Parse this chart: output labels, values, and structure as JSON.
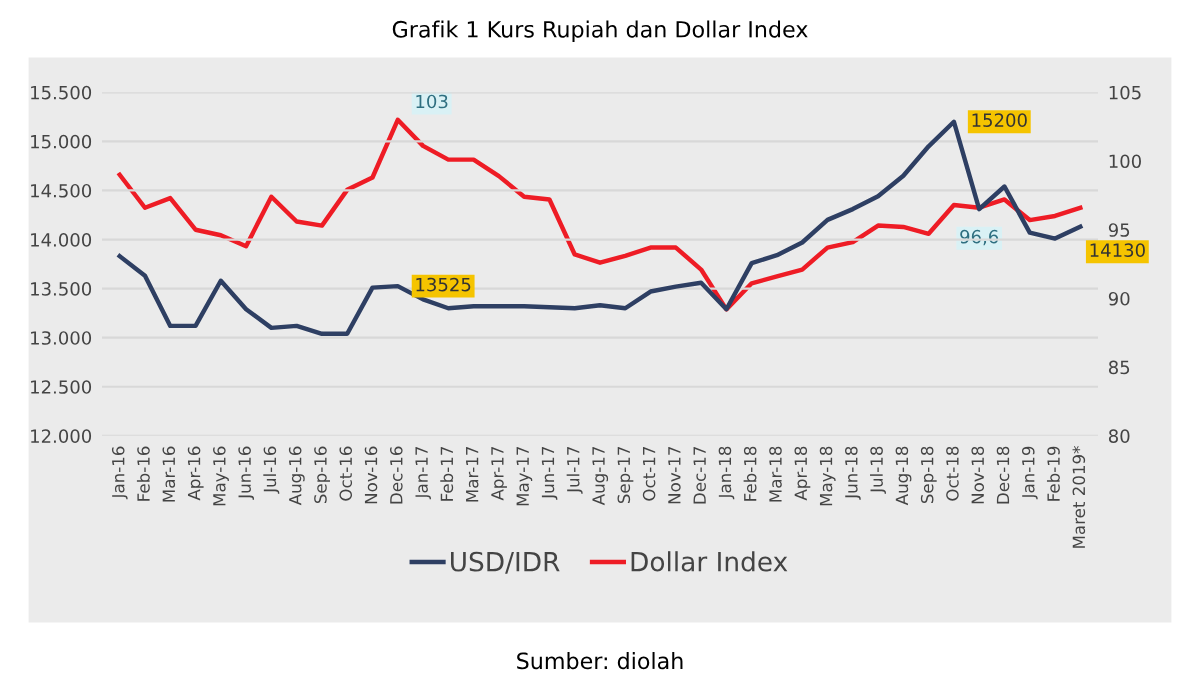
{
  "chart_data": {
    "type": "line",
    "title": "Grafik 1 Kurs Rupiah dan Dollar Index",
    "categories": [
      "Jan-16",
      "Feb-16",
      "Mar-16",
      "Apr-16",
      "May-16",
      "Jun-16",
      "Jul-16",
      "Aug-16",
      "Sep-16",
      "Oct-16",
      "Nov-16",
      "Dec-16",
      "Jan-17",
      "Feb-17",
      "Mar-17",
      "Apr-17",
      "May-17",
      "Jun-17",
      "Jul-17",
      "Aug-17",
      "Sep-17",
      "Oct-17",
      "Nov-17",
      "Dec-17",
      "Jan-18",
      "Feb-18",
      "Mar-18",
      "Apr-18",
      "May-18",
      "Jun-18",
      "Jul-18",
      "Aug-18",
      "Sep-18",
      "Oct-18",
      "Nov-18",
      "Dec-18",
      "Jan-19",
      "Feb-19",
      "Maret 2019*"
    ],
    "series": [
      {
        "name": "USD/IDR",
        "color": "#2e3f63",
        "values": [
          13830,
          13630,
          13120,
          13120,
          13580,
          13290,
          13100,
          13120,
          13040,
          13040,
          13510,
          13525,
          13390,
          13300,
          13320,
          13320,
          13320,
          13310,
          13300,
          13330,
          13300,
          13470,
          13520,
          13560,
          13290,
          13760,
          13840,
          13970,
          14200,
          14310,
          14440,
          14650,
          14950,
          15200,
          14310,
          14540,
          14070,
          14010,
          14130
        ],
        "value_labels": [
          null,
          null,
          null,
          null,
          null,
          null,
          null,
          null,
          null,
          null,
          null,
          "13525",
          null,
          null,
          null,
          null,
          null,
          null,
          null,
          null,
          null,
          null,
          null,
          null,
          null,
          null,
          null,
          null,
          null,
          null,
          null,
          null,
          null,
          "15200",
          null,
          null,
          null,
          null,
          "14130"
        ]
      },
      {
        "name": "Dollar Index",
        "color": "#ee1c25",
        "axis": "y2",
        "values": [
          99.0,
          96.6,
          97.3,
          95.0,
          94.6,
          93.8,
          97.4,
          95.6,
          95.3,
          97.9,
          98.8,
          103,
          101.1,
          100.1,
          100.1,
          98.9,
          97.4,
          97.2,
          93.2,
          92.6,
          93.1,
          93.7,
          93.7,
          92.1,
          89.2,
          91.1,
          91.6,
          92.1,
          93.7,
          94.1,
          95.3,
          95.2,
          94.7,
          96.8,
          96.6,
          97.2,
          95.7,
          96.0,
          96.6
        ],
        "value_labels": [
          null,
          null,
          null,
          null,
          null,
          null,
          null,
          null,
          null,
          null,
          null,
          "103",
          null,
          null,
          null,
          null,
          null,
          null,
          null,
          null,
          null,
          null,
          null,
          null,
          null,
          null,
          null,
          null,
          null,
          null,
          null,
          null,
          null,
          null,
          "96,6",
          null,
          null,
          null,
          null
        ]
      }
    ],
    "ylim": [
      12000,
      15500
    ],
    "yticks": [
      {
        "value": 12000,
        "label": "12.000"
      },
      {
        "value": 12500,
        "label": "12.500"
      },
      {
        "value": 13000,
        "label": "13.000"
      },
      {
        "value": 13500,
        "label": "13.500"
      },
      {
        "value": 14000,
        "label": "14.000"
      },
      {
        "value": 14500,
        "label": "14.500"
      },
      {
        "value": 15000,
        "label": "15.000"
      },
      {
        "value": 15500,
        "label": "15.500"
      }
    ],
    "y2lim": [
      80,
      105
    ],
    "y2ticks": [
      80,
      85,
      90,
      95,
      100,
      105
    ],
    "grid": "y",
    "legend": "bottom",
    "marker": "none",
    "line_style": "solid",
    "annotations": [
      "Sumber: diolah"
    ]
  }
}
